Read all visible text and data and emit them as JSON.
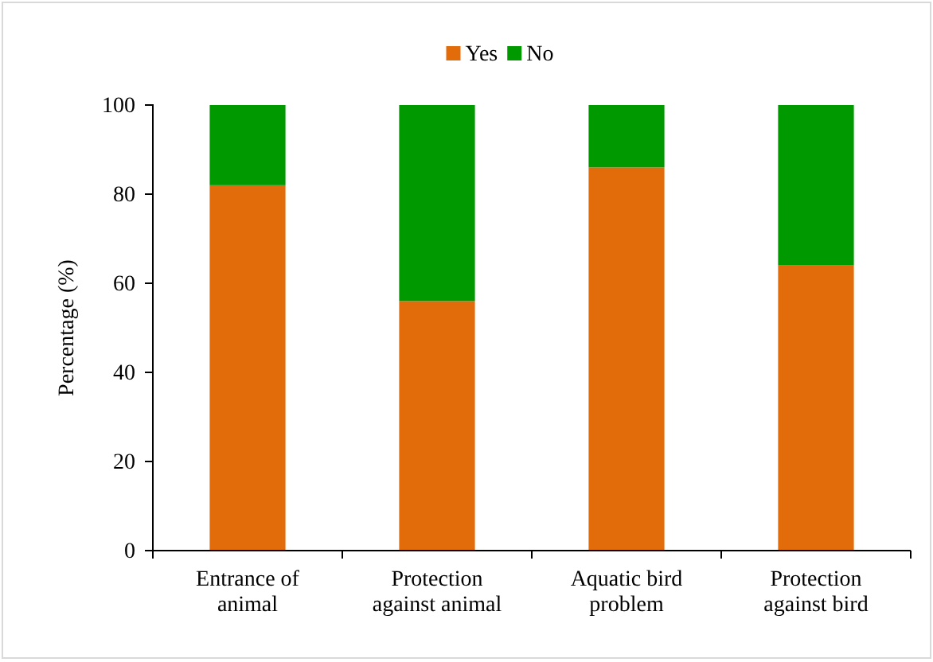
{
  "chart_data": {
    "type": "bar",
    "stacked": true,
    "ylabel": "Percentage (%)",
    "categories": [
      "Entrance of animal",
      "Protection against animal",
      "Aquatic bird problem",
      "Protection against bird"
    ],
    "series": [
      {
        "name": "Yes",
        "color": "#e36c0a",
        "values": [
          82,
          56,
          86,
          64
        ]
      },
      {
        "name": "No",
        "color": "#009900",
        "values": [
          18,
          44,
          14,
          36
        ]
      }
    ],
    "ylim": [
      0,
      100
    ],
    "yticks": [
      0,
      20,
      40,
      60,
      80,
      100
    ],
    "grid": false,
    "legend": "top"
  }
}
